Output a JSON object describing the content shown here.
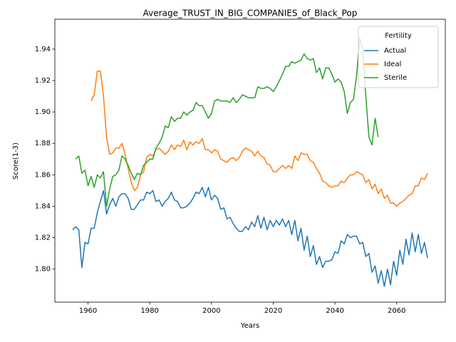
{
  "chart_data": {
    "type": "line",
    "title": "Average_TRUST_IN_BIG_COMPANIES_of_Black_Pop",
    "xlabel": "Years",
    "ylabel": "Score(1-3)",
    "legend_title": "Fertility",
    "legend": "upper right",
    "grid": false,
    "xlim": [
      1949.25,
      2075.75
    ],
    "xticks": [
      1960,
      1980,
      2000,
      2020,
      2040,
      2060
    ],
    "ylim": [
      1.779,
      1.959
    ],
    "yticks": [
      {
        "value": 1.8,
        "label": "1.80"
      },
      1.82,
      1.84,
      1.86,
      1.88,
      {
        "value": 1.9,
        "label": "1.90"
      },
      1.92,
      1.94
    ],
    "x": [
      1955,
      1956,
      1957,
      1958,
      1959,
      1960,
      1961,
      1962,
      1963,
      1964,
      1965,
      1966,
      1967,
      1968,
      1969,
      1970,
      1971,
      1972,
      1973,
      1974,
      1975,
      1976,
      1977,
      1978,
      1979,
      1980,
      1981,
      1982,
      1983,
      1984,
      1985,
      1986,
      1987,
      1988,
      1989,
      1990,
      1991,
      1992,
      1993,
      1994,
      1995,
      1996,
      1997,
      1998,
      1999,
      2000,
      2001,
      2002,
      2003,
      2004,
      2005,
      2006,
      2007,
      2008,
      2009,
      2010,
      2011,
      2012,
      2013,
      2014,
      2015,
      2016,
      2017,
      2018,
      2019,
      2020,
      2021,
      2022,
      2023,
      2024,
      2025,
      2026,
      2027,
      2028,
      2029,
      2030,
      2031,
      2032,
      2033,
      2034,
      2035,
      2036,
      2037,
      2038,
      2039,
      2040,
      2041,
      2042,
      2043,
      2044,
      2045,
      2046,
      2047,
      2048,
      2049,
      2050,
      2051,
      2052,
      2053,
      2054,
      2055,
      2056,
      2057,
      2058,
      2059,
      2060,
      2061,
      2062,
      2063,
      2064,
      2065,
      2066,
      2067,
      2068,
      2069,
      2070
    ],
    "series": [
      {
        "name": "Actual",
        "color": "#1f77b4",
        "values": [
          1.825,
          1.827,
          1.825,
          1.801,
          1.817,
          1.816,
          1.826,
          1.826,
          1.836,
          1.843,
          1.85,
          1.835,
          1.841,
          1.845,
          1.84,
          1.846,
          1.848,
          1.848,
          1.845,
          1.838,
          1.838,
          1.841,
          1.844,
          1.844,
          1.849,
          1.848,
          1.85,
          1.843,
          1.844,
          1.84,
          1.843,
          1.845,
          1.849,
          1.844,
          1.843,
          1.839,
          1.839,
          1.84,
          1.842,
          1.845,
          1.849,
          1.848,
          1.852,
          1.846,
          1.852,
          1.844,
          1.847,
          1.845,
          1.838,
          1.839,
          1.832,
          1.833,
          1.829,
          1.826,
          1.824,
          1.824,
          1.827,
          1.825,
          1.83,
          1.827,
          1.834,
          1.826,
          1.833,
          1.825,
          1.831,
          1.827,
          1.831,
          1.828,
          1.832,
          1.827,
          1.831,
          1.822,
          1.831,
          1.818,
          1.826,
          1.812,
          1.821,
          1.808,
          1.815,
          1.803,
          1.808,
          1.801,
          1.805,
          1.805,
          1.806,
          1.811,
          1.81,
          1.818,
          1.816,
          1.822,
          1.82,
          1.821,
          1.821,
          1.816,
          1.817,
          1.808,
          1.81,
          1.798,
          1.802,
          1.791,
          1.799,
          1.789,
          1.8,
          1.79,
          1.805,
          1.796,
          1.812,
          1.803,
          1.819,
          1.809,
          1.823,
          1.811,
          1.822,
          1.81,
          1.817,
          1.807
        ]
      },
      {
        "name": "Ideal",
        "color": "#ff7f0e",
        "values": [
          null,
          null,
          null,
          null,
          null,
          null,
          1.907,
          1.911,
          1.926,
          1.926,
          1.91,
          1.884,
          1.873,
          1.874,
          1.877,
          1.877,
          1.88,
          1.873,
          1.864,
          1.855,
          1.85,
          1.852,
          1.86,
          1.862,
          1.871,
          1.873,
          1.872,
          1.876,
          1.877,
          1.875,
          1.873,
          1.875,
          1.879,
          1.876,
          1.879,
          1.878,
          1.882,
          1.876,
          1.881,
          1.879,
          1.881,
          1.88,
          1.883,
          1.876,
          1.876,
          1.874,
          1.876,
          1.875,
          1.87,
          1.869,
          1.868,
          1.87,
          1.871,
          1.869,
          1.871,
          1.875,
          1.877,
          1.876,
          1.875,
          1.872,
          1.875,
          1.872,
          1.871,
          1.867,
          1.866,
          1.862,
          1.862,
          1.864,
          1.866,
          1.864,
          1.866,
          1.864,
          1.872,
          1.869,
          1.874,
          1.873,
          1.873,
          1.869,
          1.868,
          1.864,
          1.861,
          1.856,
          1.855,
          1.853,
          1.852,
          1.853,
          1.853,
          1.856,
          1.855,
          1.858,
          1.86,
          1.86,
          1.862,
          1.861,
          1.86,
          1.855,
          1.857,
          1.851,
          1.854,
          1.848,
          1.851,
          1.845,
          1.847,
          1.842,
          1.842,
          1.84,
          1.842,
          1.843,
          1.845,
          1.847,
          1.848,
          1.853,
          1.853,
          1.858,
          1.857,
          1.861
        ]
      },
      {
        "name": "Sterile",
        "color": "#2ca02c",
        "values": [
          null,
          1.87,
          1.872,
          1.861,
          1.863,
          1.853,
          1.859,
          1.852,
          1.86,
          1.858,
          1.862,
          1.84,
          1.851,
          1.859,
          1.86,
          1.863,
          1.872,
          1.87,
          1.866,
          1.861,
          1.857,
          1.861,
          1.86,
          1.866,
          1.868,
          1.87,
          1.87,
          1.877,
          1.88,
          1.884,
          1.891,
          1.89,
          1.897,
          1.894,
          1.896,
          1.896,
          1.9,
          1.898,
          1.9,
          1.901,
          1.906,
          1.904,
          1.904,
          1.9,
          1.896,
          1.899,
          1.907,
          1.908,
          1.907,
          1.907,
          1.907,
          1.906,
          1.909,
          1.906,
          1.908,
          1.911,
          1.91,
          1.909,
          1.909,
          1.909,
          1.916,
          1.915,
          1.915,
          1.916,
          1.915,
          1.913,
          1.916,
          1.92,
          1.924,
          1.929,
          1.929,
          1.932,
          1.931,
          1.932,
          1.933,
          1.937,
          1.934,
          1.933,
          1.934,
          1.925,
          1.928,
          1.921,
          1.928,
          1.928,
          1.924,
          1.919,
          1.921,
          1.919,
          1.913,
          1.899,
          1.906,
          1.908,
          1.923,
          1.947,
          1.94,
          1.91,
          1.884,
          1.879,
          1.896,
          1.884,
          null,
          null,
          null,
          null,
          null,
          null,
          null,
          null,
          null,
          null,
          null,
          null,
          null,
          null,
          null,
          null
        ]
      }
    ]
  }
}
